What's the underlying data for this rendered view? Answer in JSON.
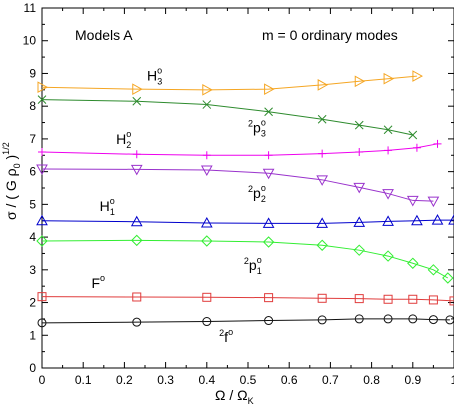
{
  "chart_data": {
    "type": "line",
    "title_left": "Models A",
    "title_right": "m = 0  ordinary modes",
    "xlabel": "Ω / Ω",
    "xlabel_sub": "K",
    "ylabel": "σ / ( G ρ",
    "ylabel_sub": "0",
    "ylabel_close": " )",
    "ylabel_sup": "1/2",
    "xlim": [
      0,
      1
    ],
    "ylim": [
      0,
      11
    ],
    "x_ticks": [
      "0",
      "0.1",
      "0.2",
      "0.3",
      "0.4",
      "0.5",
      "0.6",
      "0.7",
      "0.8",
      "0.9",
      "1"
    ],
    "y_ticks": [
      "0",
      "1",
      "2",
      "3",
      "4",
      "5",
      "6",
      "7",
      "8",
      "9",
      "10",
      "11"
    ],
    "grid": false,
    "series": [
      {
        "label_base": "H",
        "label_sub": "3",
        "label_sup": "o",
        "label_x": 0.255,
        "label_y": 8.78,
        "color": "#f5a623",
        "marker": "triangle-right",
        "x": [
          0,
          0.23,
          0.4,
          0.55,
          0.68,
          0.77,
          0.84,
          0.91
        ],
        "y": [
          8.58,
          8.52,
          8.5,
          8.52,
          8.65,
          8.76,
          8.84,
          8.92
        ]
      },
      {
        "label_base": "p",
        "label_pre": "2",
        "label_sub": "3",
        "label_sup": "o",
        "label_x": 0.5,
        "label_y": 7.2,
        "color": "#2e8b2e",
        "marker": "x",
        "x": [
          0,
          0.23,
          0.4,
          0.55,
          0.68,
          0.77,
          0.84,
          0.9
        ],
        "y": [
          8.2,
          8.15,
          8.05,
          7.83,
          7.6,
          7.42,
          7.28,
          7.12
        ]
      },
      {
        "label_base": "H",
        "label_sub": "2",
        "label_sup": "o",
        "label_x": 0.18,
        "label_y": 6.85,
        "color": "#ee00ee",
        "marker": "plus",
        "x": [
          0,
          0.23,
          0.4,
          0.55,
          0.68,
          0.77,
          0.84,
          0.91,
          0.96
        ],
        "y": [
          6.6,
          6.53,
          6.5,
          6.5,
          6.55,
          6.6,
          6.65,
          6.73,
          6.85
        ]
      },
      {
        "label_base": "p",
        "label_pre": "2",
        "label_sub": "2",
        "label_sup": "o",
        "label_x": 0.5,
        "label_y": 5.2,
        "color": "#9932cc",
        "marker": "triangle-down",
        "x": [
          0,
          0.23,
          0.4,
          0.55,
          0.68,
          0.77,
          0.84,
          0.9,
          0.95
        ],
        "y": [
          6.08,
          6.07,
          6.05,
          5.95,
          5.75,
          5.52,
          5.33,
          5.12,
          5.1
        ]
      },
      {
        "label_base": "H",
        "label_sub": "1",
        "label_sup": "o",
        "label_x": 0.14,
        "label_y": 4.8,
        "color": "#0000cc",
        "marker": "triangle-up",
        "x": [
          0,
          0.23,
          0.4,
          0.55,
          0.68,
          0.77,
          0.84,
          0.91,
          0.96,
          1.0
        ],
        "y": [
          4.5,
          4.47,
          4.43,
          4.42,
          4.42,
          4.45,
          4.48,
          4.5,
          4.52,
          4.52
        ]
      },
      {
        "label_base": "p",
        "label_pre": "2",
        "label_sub": "1",
        "label_sup": "o",
        "label_x": 0.49,
        "label_y": 3.0,
        "color": "#33ee33",
        "marker": "diamond",
        "x": [
          0,
          0.23,
          0.4,
          0.55,
          0.68,
          0.77,
          0.84,
          0.9,
          0.95,
          0.985
        ],
        "y": [
          3.88,
          3.9,
          3.88,
          3.85,
          3.75,
          3.6,
          3.42,
          3.2,
          3.0,
          2.75
        ]
      },
      {
        "label_base": "F",
        "label_sup": "o",
        "label_x": 0.12,
        "label_y": 2.45,
        "color": "#e03c3c",
        "marker": "square",
        "x": [
          0,
          0.23,
          0.4,
          0.55,
          0.68,
          0.77,
          0.84,
          0.9,
          0.95,
          1.0
        ],
        "y": [
          2.18,
          2.17,
          2.16,
          2.15,
          2.13,
          2.12,
          2.1,
          2.1,
          2.08,
          2.05
        ]
      },
      {
        "label_base": "f",
        "label_pre": "2",
        "label_sup": "o",
        "label_x": 0.43,
        "label_y": 0.8,
        "color": "#111111",
        "marker": "circle",
        "x": [
          0,
          0.23,
          0.4,
          0.55,
          0.68,
          0.77,
          0.84,
          0.9,
          0.95,
          0.99
        ],
        "y": [
          1.38,
          1.4,
          1.42,
          1.45,
          1.47,
          1.5,
          1.5,
          1.5,
          1.48,
          1.47
        ]
      }
    ]
  }
}
